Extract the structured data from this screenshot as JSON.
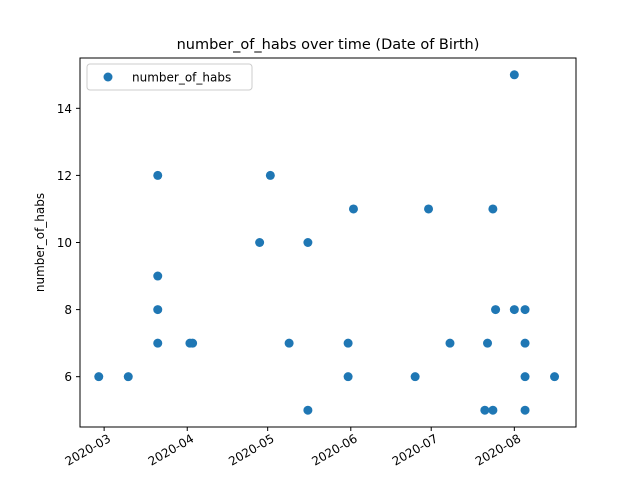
{
  "chart_data": {
    "type": "scatter",
    "title": "number_of_habs over time (Date of Birth)",
    "xlabel": "",
    "ylabel": "number_of_habs",
    "x_range": [
      "2020-02-21",
      "2020-08-24"
    ],
    "ylim": [
      4.5,
      15.5
    ],
    "x_ticks": [
      "2020-03",
      "2020-04",
      "2020-05",
      "2020-06",
      "2020-07",
      "2020-08"
    ],
    "x_tick_dates": [
      "2020-03-01",
      "2020-04-01",
      "2020-05-01",
      "2020-06-01",
      "2020-07-01",
      "2020-08-01"
    ],
    "y_ticks": [
      6,
      8,
      10,
      12,
      14
    ],
    "grid": false,
    "legend": {
      "position": "top-left",
      "entries": [
        "number_of_habs"
      ]
    },
    "color": "#1f77b4",
    "series": [
      {
        "name": "number_of_habs",
        "points": [
          {
            "x": "2020-02-28",
            "y": 6
          },
          {
            "x": "2020-03-10",
            "y": 6
          },
          {
            "x": "2020-03-21",
            "y": 12
          },
          {
            "x": "2020-03-21",
            "y": 9
          },
          {
            "x": "2020-03-21",
            "y": 8
          },
          {
            "x": "2020-03-21",
            "y": 7
          },
          {
            "x": "2020-04-02",
            "y": 7
          },
          {
            "x": "2020-04-03",
            "y": 7
          },
          {
            "x": "2020-04-28",
            "y": 10
          },
          {
            "x": "2020-05-02",
            "y": 12
          },
          {
            "x": "2020-05-09",
            "y": 7
          },
          {
            "x": "2020-05-16",
            "y": 10
          },
          {
            "x": "2020-05-16",
            "y": 5
          },
          {
            "x": "2020-05-31",
            "y": 7
          },
          {
            "x": "2020-05-31",
            "y": 6
          },
          {
            "x": "2020-06-02",
            "y": 11
          },
          {
            "x": "2020-06-25",
            "y": 6
          },
          {
            "x": "2020-06-30",
            "y": 11
          },
          {
            "x": "2020-07-08",
            "y": 7
          },
          {
            "x": "2020-07-21",
            "y": 5
          },
          {
            "x": "2020-07-22",
            "y": 7
          },
          {
            "x": "2020-07-24",
            "y": 5
          },
          {
            "x": "2020-07-24",
            "y": 11
          },
          {
            "x": "2020-07-25",
            "y": 8
          },
          {
            "x": "2020-08-01",
            "y": 15
          },
          {
            "x": "2020-08-01",
            "y": 8
          },
          {
            "x": "2020-08-05",
            "y": 8
          },
          {
            "x": "2020-08-05",
            "y": 7
          },
          {
            "x": "2020-08-05",
            "y": 6
          },
          {
            "x": "2020-08-05",
            "y": 5
          },
          {
            "x": "2020-08-16",
            "y": 6
          }
        ]
      }
    ]
  }
}
